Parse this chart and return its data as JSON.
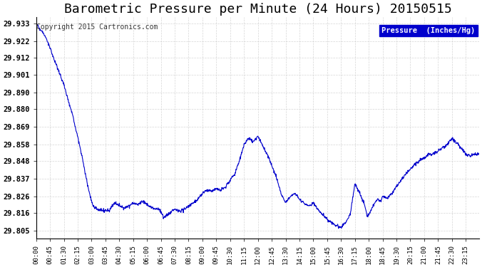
{
  "title": "Barometric Pressure per Minute (24 Hours) 20150515",
  "copyright": "Copyright 2015 Cartronics.com",
  "legend_label": "Pressure  (Inches/Hg)",
  "yticks": [
    29.805,
    29.816,
    29.826,
    29.837,
    29.848,
    29.858,
    29.869,
    29.88,
    29.89,
    29.901,
    29.912,
    29.922,
    29.933
  ],
  "ylim": [
    29.8,
    29.937
  ],
  "x_labels": [
    "00:00",
    "00:45",
    "01:30",
    "02:15",
    "03:00",
    "03:45",
    "04:30",
    "05:15",
    "06:00",
    "06:45",
    "07:30",
    "08:15",
    "09:00",
    "09:45",
    "10:30",
    "11:15",
    "12:00",
    "12:45",
    "13:30",
    "14:15",
    "15:00",
    "15:45",
    "16:30",
    "17:15",
    "18:00",
    "18:45",
    "19:30",
    "20:15",
    "21:00",
    "21:45",
    "22:30",
    "23:15"
  ],
  "line_color": "#0000cc",
  "background_color": "#ffffff",
  "grid_color": "#cccccc",
  "title_color": "#000000",
  "title_fontsize": 13,
  "copyright_fontsize": 7,
  "legend_bg": "#0000cc",
  "legend_fg": "#ffffff"
}
